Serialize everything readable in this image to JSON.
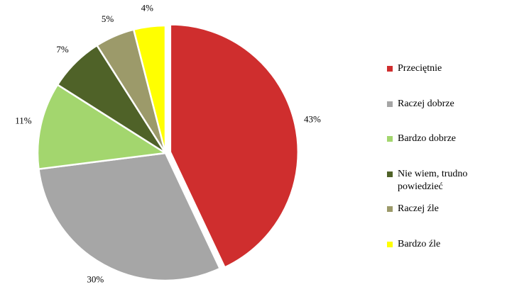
{
  "chart_data": {
    "type": "pie",
    "categories": [
      "Przeciętnie",
      "Raczej dobrze",
      "Bardzo dobrze",
      "Nie wiem, trudno powiedzieć",
      "Raczej źle",
      "Bardzo źle"
    ],
    "values": [
      43,
      30,
      11,
      7,
      5,
      4
    ],
    "value_labels": [
      "43%",
      "30%",
      "11%",
      "7%",
      "5%",
      "4%"
    ],
    "colors": [
      "#cf2e2e",
      "#a6a6a6",
      "#a3d66e",
      "#4f6228",
      "#9c9a6a",
      "#ffff00"
    ],
    "legend": "right"
  }
}
